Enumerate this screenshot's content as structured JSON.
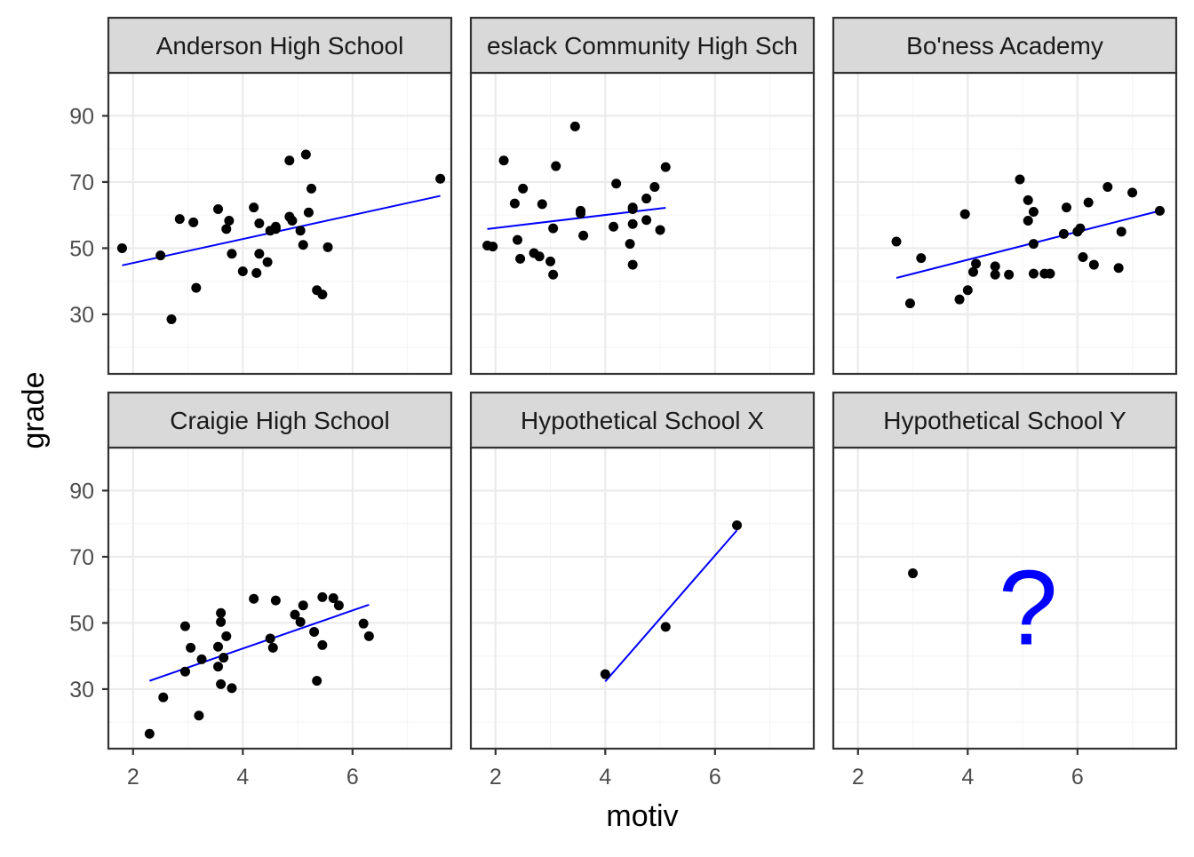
{
  "chart_data": {
    "type": "scatter",
    "layout": "facet-grid-2x3",
    "xlabel": "motiv",
    "ylabel": "grade",
    "xlim": [
      1.55,
      7.8
    ],
    "ylim": [
      12,
      103
    ],
    "x_ticks": [
      2,
      4,
      6
    ],
    "y_ticks": [
      30,
      50,
      70,
      90
    ],
    "colors": {
      "point": "#000000",
      "fit_line": "#0000ff",
      "annotation": "#0000ff",
      "strip_fill": "#d9d9d9",
      "grid_major": "#ebebeb",
      "grid_minor": "#f5f5f5",
      "panel_border": "#333333"
    },
    "panels": [
      {
        "title": "Anderson High School",
        "points": [
          [
            1.8,
            50.0
          ],
          [
            2.5,
            47.8
          ],
          [
            2.7,
            28.5
          ],
          [
            2.85,
            58.8
          ],
          [
            3.1,
            57.8
          ],
          [
            3.15,
            38.0
          ],
          [
            3.55,
            61.8
          ],
          [
            3.7,
            55.8
          ],
          [
            3.75,
            58.3
          ],
          [
            3.8,
            48.3
          ],
          [
            4.0,
            43.0
          ],
          [
            4.2,
            62.3
          ],
          [
            4.25,
            42.5
          ],
          [
            4.3,
            48.3
          ],
          [
            4.3,
            57.5
          ],
          [
            4.45,
            45.8
          ],
          [
            4.5,
            55.3
          ],
          [
            4.6,
            56.5
          ],
          [
            4.6,
            55.8
          ],
          [
            4.85,
            59.5
          ],
          [
            4.85,
            76.5
          ],
          [
            4.9,
            58.3
          ],
          [
            5.05,
            55.3
          ],
          [
            5.1,
            51.0
          ],
          [
            5.15,
            78.3
          ],
          [
            5.2,
            60.8
          ],
          [
            5.25,
            68.0
          ],
          [
            5.35,
            37.3
          ],
          [
            5.45,
            36.0
          ],
          [
            5.55,
            50.3
          ],
          [
            7.6,
            71.0
          ]
        ],
        "fit": {
          "x": [
            1.8,
            7.6
          ],
          "y": [
            44.8,
            65.8
          ]
        }
      },
      {
        "title": "Balwearie-Queslack Community High School",
        "display_title": "eslack Community High Sch",
        "points": [
          [
            1.85,
            50.8
          ],
          [
            1.95,
            50.5
          ],
          [
            2.15,
            76.5
          ],
          [
            2.35,
            63.5
          ],
          [
            2.4,
            52.5
          ],
          [
            2.45,
            46.8
          ],
          [
            2.5,
            68.0
          ],
          [
            2.7,
            48.5
          ],
          [
            2.8,
            47.5
          ],
          [
            2.85,
            63.3
          ],
          [
            3.0,
            46.0
          ],
          [
            3.05,
            42.0
          ],
          [
            3.05,
            56.0
          ],
          [
            3.1,
            74.8
          ],
          [
            3.45,
            86.8
          ],
          [
            3.55,
            60.5
          ],
          [
            3.55,
            61.3
          ],
          [
            3.6,
            53.8
          ],
          [
            4.15,
            56.5
          ],
          [
            4.2,
            69.5
          ],
          [
            4.45,
            51.3
          ],
          [
            4.5,
            61.8
          ],
          [
            4.5,
            62.3
          ],
          [
            4.5,
            57.3
          ],
          [
            4.5,
            45.0
          ],
          [
            4.75,
            58.5
          ],
          [
            4.75,
            65.0
          ],
          [
            4.9,
            68.5
          ],
          [
            5.0,
            55.5
          ],
          [
            5.1,
            74.5
          ]
        ],
        "fit": {
          "x": [
            1.85,
            5.1
          ],
          "y": [
            55.8,
            62.2
          ]
        }
      },
      {
        "title": "Bo'ness Academy",
        "points": [
          [
            2.7,
            52.0
          ],
          [
            2.95,
            33.3
          ],
          [
            3.15,
            47.0
          ],
          [
            3.85,
            34.5
          ],
          [
            3.95,
            60.3
          ],
          [
            4.0,
            37.3
          ],
          [
            4.1,
            42.8
          ],
          [
            4.15,
            45.3
          ],
          [
            4.5,
            42.0
          ],
          [
            4.5,
            44.5
          ],
          [
            4.75,
            42.0
          ],
          [
            4.95,
            70.8
          ],
          [
            5.1,
            64.5
          ],
          [
            5.1,
            58.3
          ],
          [
            5.2,
            51.3
          ],
          [
            5.2,
            61.0
          ],
          [
            5.2,
            42.3
          ],
          [
            5.4,
            42.3
          ],
          [
            5.5,
            42.3
          ],
          [
            5.75,
            54.3
          ],
          [
            5.8,
            62.3
          ],
          [
            6.0,
            55.0
          ],
          [
            6.05,
            56.0
          ],
          [
            6.1,
            47.3
          ],
          [
            6.2,
            63.8
          ],
          [
            6.3,
            45.0
          ],
          [
            6.55,
            68.5
          ],
          [
            6.75,
            44.0
          ],
          [
            6.8,
            55.0
          ],
          [
            7.0,
            66.8
          ],
          [
            7.5,
            61.3
          ]
        ],
        "fit": {
          "x": [
            2.7,
            7.5
          ],
          "y": [
            41.0,
            61.3
          ]
        }
      },
      {
        "title": "Craigie High School",
        "points": [
          [
            2.3,
            16.5
          ],
          [
            2.55,
            27.5
          ],
          [
            2.95,
            35.3
          ],
          [
            2.95,
            49.0
          ],
          [
            3.05,
            42.5
          ],
          [
            3.2,
            22.0
          ],
          [
            3.25,
            39.0
          ],
          [
            3.55,
            36.8
          ],
          [
            3.55,
            42.8
          ],
          [
            3.6,
            50.3
          ],
          [
            3.6,
            53.0
          ],
          [
            3.6,
            31.5
          ],
          [
            3.65,
            39.5
          ],
          [
            3.7,
            46.0
          ],
          [
            3.8,
            30.3
          ],
          [
            4.2,
            57.3
          ],
          [
            4.5,
            45.3
          ],
          [
            4.55,
            42.5
          ],
          [
            4.6,
            56.8
          ],
          [
            4.95,
            52.5
          ],
          [
            5.05,
            50.3
          ],
          [
            5.1,
            55.3
          ],
          [
            5.3,
            47.3
          ],
          [
            5.35,
            32.5
          ],
          [
            5.45,
            43.3
          ],
          [
            5.45,
            57.8
          ],
          [
            5.65,
            57.5
          ],
          [
            5.75,
            55.3
          ],
          [
            6.2,
            49.8
          ],
          [
            6.3,
            46.0
          ]
        ],
        "fit": {
          "x": [
            2.3,
            6.3
          ],
          "y": [
            32.5,
            55.5
          ]
        }
      },
      {
        "title": "Hypothetical School X",
        "points": [
          [
            4.0,
            34.5
          ],
          [
            5.1,
            48.8
          ],
          [
            6.4,
            79.5
          ]
        ],
        "fit": {
          "x": [
            4.0,
            6.4
          ],
          "y": [
            32.3,
            78.0
          ]
        }
      },
      {
        "title": "Hypothetical School Y",
        "points": [
          [
            3.0,
            65.0
          ]
        ],
        "annotation": "?"
      }
    ]
  }
}
